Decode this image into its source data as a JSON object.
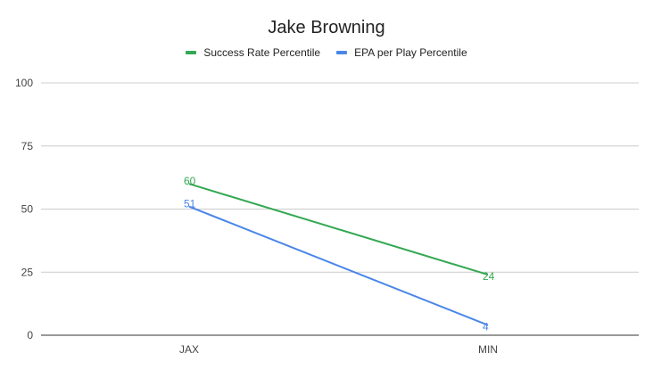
{
  "chart_data": {
    "type": "line",
    "title": "Jake Browning",
    "categories": [
      "JAX",
      "MIN"
    ],
    "series": [
      {
        "name": "Success Rate Percentile",
        "values": [
          60,
          24
        ],
        "color": "#34a853"
      },
      {
        "name": "EPA per Play Percentile",
        "values": [
          51,
          4
        ],
        "color": "#4a86e8"
      }
    ],
    "ylim": [
      0,
      100
    ],
    "yticks": [
      "0",
      "25",
      "50",
      "75",
      "100"
    ],
    "grid": true,
    "legend_position": "top",
    "data_labels": true
  }
}
